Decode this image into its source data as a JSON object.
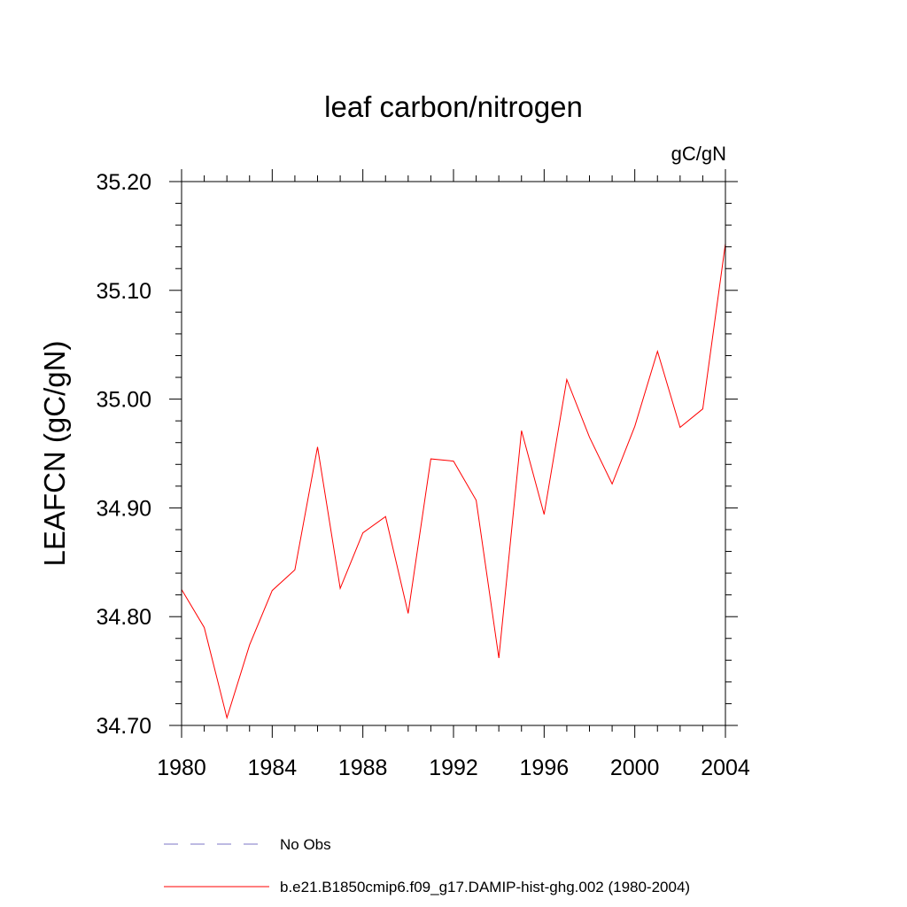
{
  "chart_data": {
    "type": "line",
    "title": "leaf carbon/nitrogen",
    "units_label": "gC/gN",
    "ylabel": "LEAFCN  (gC/gN)",
    "xlabel": "",
    "xlim": [
      1980,
      2004
    ],
    "ylim": [
      34.7,
      35.2
    ],
    "x_ticks": [
      1980,
      1984,
      1988,
      1992,
      1996,
      2000,
      2004
    ],
    "x_tick_labels": [
      "1980",
      "1984",
      "1988",
      "1992",
      "1996",
      "2000",
      "2004"
    ],
    "y_ticks": [
      34.7,
      34.8,
      34.9,
      35.0,
      35.1,
      35.2
    ],
    "y_tick_labels": [
      "34.70",
      "34.80",
      "34.90",
      "35.00",
      "35.10",
      "35.20"
    ],
    "grid": false,
    "legend_position": "bottom",
    "series": [
      {
        "name": "b.e21.B1850cmip6.f09_g17.DAMIP-hist-ghg.002 (1980-2004)",
        "color": "#ff0000",
        "dash": "solid",
        "x": [
          1980,
          1981,
          1982,
          1983,
          1984,
          1985,
          1986,
          1987,
          1988,
          1989,
          1990,
          1991,
          1992,
          1993,
          1994,
          1995,
          1996,
          1997,
          1998,
          1999,
          2000,
          2001,
          2002,
          2003,
          2004
        ],
        "values": [
          34.825,
          34.79,
          34.707,
          34.774,
          34.824,
          34.843,
          34.956,
          34.826,
          34.877,
          34.892,
          34.803,
          34.945,
          34.943,
          34.907,
          34.762,
          34.971,
          34.894,
          35.018,
          34.965,
          34.922,
          34.975,
          35.044,
          34.974,
          34.991,
          35.143
        ]
      }
    ],
    "legend": [
      {
        "label": "No Obs",
        "color": "#7b74c4",
        "dash": "dashed"
      },
      {
        "label": "b.e21.B1850cmip6.f09_g17.DAMIP-hist-ghg.002 (1980-2004)",
        "color": "#ff0000",
        "dash": "solid"
      }
    ]
  }
}
